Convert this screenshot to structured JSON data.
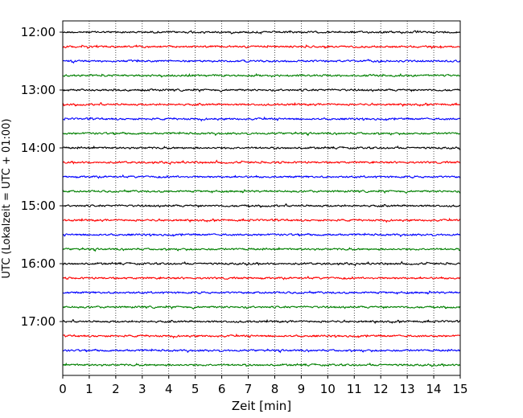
{
  "chart_data": {
    "type": "line",
    "title": "",
    "xlabel": "Zeit  [min]",
    "ylabel": "UTC (Lokalzeit = UTC + 01:00)",
    "xlim": [
      0,
      15
    ],
    "x_ticks": [
      0,
      1,
      2,
      3,
      4,
      5,
      6,
      7,
      8,
      9,
      10,
      11,
      12,
      13,
      14,
      15
    ],
    "y_tick_labels": [
      "12:00",
      "13:00",
      "14:00",
      "15:00",
      "16:00",
      "17:00"
    ],
    "grid": "vertical dotted",
    "legend": "none",
    "trace_interval_minutes": 15,
    "traces_start": "12:00",
    "traces_end": "17:45",
    "trace_count": 24,
    "trace_colors": [
      "#000000",
      "#ff0000",
      "#0000ff",
      "#008000"
    ]
  }
}
